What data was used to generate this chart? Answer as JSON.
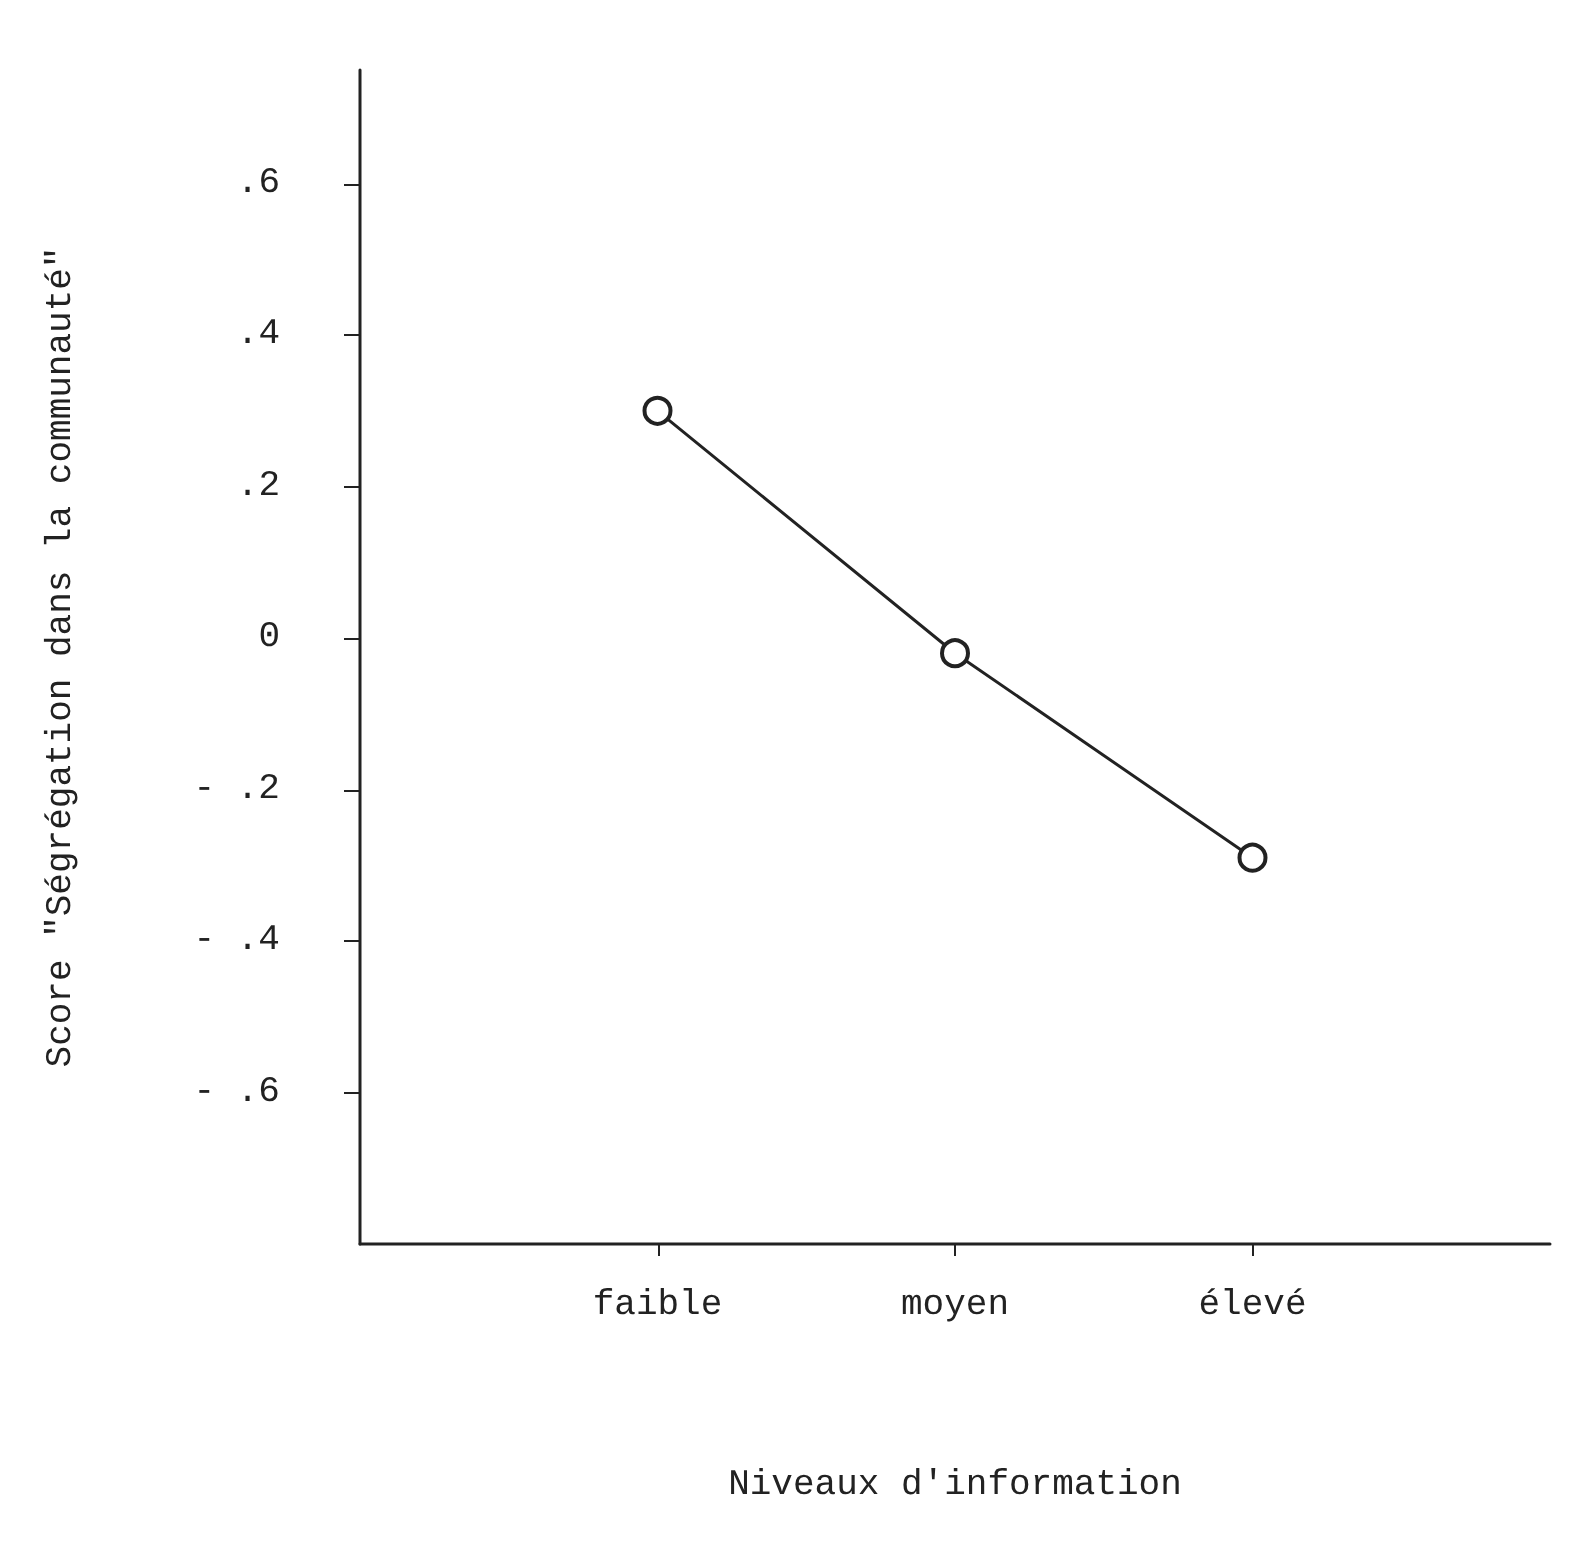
{
  "chart_data": {
    "type": "line",
    "xlabel": "Niveaux d'information",
    "ylabel": "Score \"Ségrégation dans la communauté\"",
    "categories": [
      "faible",
      "moyen",
      "élevé"
    ],
    "series": [
      {
        "color": "#222222",
        "values": [
          0.3,
          -0.02,
          -0.29
        ]
      }
    ],
    "ylim": [
      -0.8,
      0.75
    ],
    "yticks": [
      {
        "value": 0.6,
        "label": ".6"
      },
      {
        "value": 0.4,
        "label": ".4"
      },
      {
        "value": 0.2,
        "label": ".2"
      },
      {
        "value": 0,
        "label": "0"
      },
      {
        "value": -0.2,
        "label": "- .2"
      },
      {
        "value": -0.4,
        "label": "- .4"
      },
      {
        "value": -0.6,
        "label": "- .6"
      }
    ],
    "grid": false,
    "marker": "circle",
    "line_style": "solid"
  }
}
